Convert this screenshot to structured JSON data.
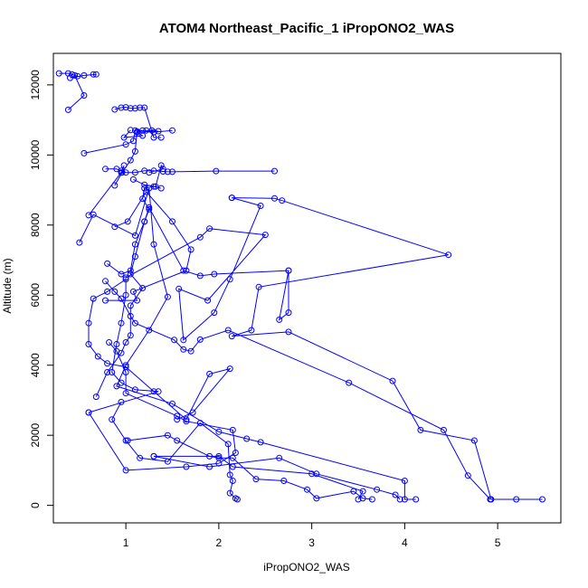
{
  "chart_data": {
    "type": "line",
    "title": "ATOM4 Northeast_Pacific_1 iPropONO2_WAS",
    "xlabel": "iPropONO2_WAS",
    "ylabel": "Altitude (m)",
    "xlim": [
      0.22,
      5.68
    ],
    "ylim": [
      -500,
      12900
    ],
    "x_ticks": [
      "1",
      "2",
      "3",
      "4",
      "5"
    ],
    "y_ticks": [
      "0",
      "2000",
      "4000",
      "6000",
      "8000",
      "10000",
      "12000"
    ],
    "grid": false,
    "legend": "none",
    "marker": "open-circle",
    "colors": {
      "series": "#0000ff",
      "axes": "#000000",
      "background": "#ffffff"
    },
    "series": [
      {
        "points": [
          [
            0.28,
            12330
          ],
          [
            0.38,
            12330
          ],
          [
            0.42,
            12300
          ],
          [
            0.48,
            12250
          ],
          [
            0.4,
            12200
          ],
          [
            0.55,
            12270
          ],
          [
            0.68,
            12300
          ],
          [
            0.65,
            12300
          ]
        ]
      },
      {
        "points": [
          [
            0.38,
            11290
          ],
          [
            0.55,
            11700
          ],
          [
            0.45,
            12270
          ]
        ]
      },
      {
        "points": [
          [
            1.22,
            10700
          ],
          [
            1.35,
            10680
          ],
          [
            1.12,
            10650
          ],
          [
            1.18,
            10550
          ],
          [
            0.98,
            10500
          ],
          [
            1.05,
            10710
          ]
        ]
      },
      {
        "points": [
          [
            0.88,
            11300
          ],
          [
            0.95,
            11350
          ],
          [
            1.0,
            11360
          ],
          [
            1.05,
            11330
          ],
          [
            1.1,
            11330
          ],
          [
            1.15,
            11350
          ],
          [
            1.2,
            11350
          ],
          [
            1.3,
            10500
          ],
          [
            1.38,
            10500
          ]
        ]
      },
      {
        "points": [
          [
            0.55,
            10050
          ],
          [
            1.0,
            10300
          ],
          [
            1.08,
            10400
          ],
          [
            1.1,
            10700
          ],
          [
            1.28,
            10700
          ],
          [
            1.3,
            10650
          ],
          [
            1.5,
            10700
          ]
        ]
      },
      {
        "points": [
          [
            0.78,
            9600
          ],
          [
            0.9,
            9600
          ],
          [
            0.95,
            9550
          ],
          [
            1.0,
            9500
          ],
          [
            1.1,
            9500
          ],
          [
            1.2,
            9550
          ],
          [
            1.3,
            9550
          ],
          [
            1.4,
            9530
          ],
          [
            1.45,
            9520
          ],
          [
            1.5,
            9520
          ],
          [
            1.97,
            9540
          ],
          [
            2.6,
            9540
          ]
        ]
      },
      {
        "points": [
          [
            0.88,
            9130
          ],
          [
            0.96,
            9500
          ],
          [
            1.05,
            9850
          ],
          [
            1.1,
            10100
          ],
          [
            1.12,
            10670
          ],
          [
            1.18,
            10700
          ]
        ]
      },
      {
        "points": [
          [
            1.08,
            9300
          ],
          [
            1.2,
            9150
          ],
          [
            1.32,
            9100
          ],
          [
            1.38,
            9700
          ],
          [
            1.4,
            9600
          ],
          [
            1.25,
            9500
          ]
        ]
      },
      {
        "points": [
          [
            0.6,
            8280
          ],
          [
            0.95,
            9500
          ],
          [
            0.98,
            9700
          ]
        ]
      },
      {
        "points": [
          [
            2.14,
            8780
          ],
          [
            2.6,
            8760
          ],
          [
            2.68,
            8700
          ],
          [
            4.47,
            7150
          ],
          [
            2.43,
            6230
          ],
          [
            2.35,
            5000
          ],
          [
            2.14,
            4830
          ],
          [
            2.75,
            4950
          ],
          [
            3.87,
            3550
          ],
          [
            4.17,
            2150
          ],
          [
            4.75,
            1850
          ],
          [
            4.93,
            170
          ],
          [
            5.2,
            170
          ],
          [
            5.48,
            170
          ]
        ]
      },
      {
        "points": [
          [
            2.14,
            8780
          ],
          [
            2.45,
            8550
          ],
          [
            2.12,
            6450
          ],
          [
            1.95,
            5500
          ],
          [
            1.62,
            4720
          ],
          [
            1.57,
            6180
          ],
          [
            1.88,
            5850
          ],
          [
            2.5,
            7720
          ],
          [
            1.9,
            7900
          ],
          [
            1.8,
            7650
          ],
          [
            1.0,
            6500
          ],
          [
            1.0,
            6000
          ],
          [
            0.95,
            5200
          ],
          [
            0.9,
            4600
          ],
          [
            0.85,
            3800
          ],
          [
            0.95,
            3500
          ],
          [
            1.1,
            3300
          ],
          [
            1.35,
            3250
          ],
          [
            0.6,
            2650
          ]
        ]
      },
      {
        "points": [
          [
            0.5,
            7500
          ],
          [
            0.65,
            8300
          ],
          [
            1.1,
            7700
          ],
          [
            1.25,
            9050
          ],
          [
            1.3,
            7450
          ],
          [
            1.45,
            5950
          ],
          [
            1.25,
            5000
          ],
          [
            1.0,
            4000
          ],
          [
            0.9,
            3400
          ],
          [
            1.5,
            2900
          ],
          [
            2.0,
            2100
          ],
          [
            2.3,
            1900
          ],
          [
            2.45,
            1800
          ],
          [
            4.0,
            700
          ],
          [
            4.0,
            170
          ],
          [
            4.12,
            170
          ]
        ]
      },
      {
        "points": [
          [
            0.8,
            6900
          ],
          [
            0.95,
            6600
          ],
          [
            1.05,
            6700
          ],
          [
            1.1,
            7450
          ],
          [
            1.2,
            8100
          ],
          [
            1.25,
            8500
          ],
          [
            1.62,
            6700
          ],
          [
            1.8,
            6550
          ],
          [
            1.95,
            6600
          ],
          [
            2.75,
            6700
          ],
          [
            2.65,
            5300
          ],
          [
            2.75,
            5500
          ],
          [
            2.75,
            6700
          ]
        ]
      },
      {
        "points": [
          [
            0.78,
            6400
          ],
          [
            0.88,
            6100
          ],
          [
            0.95,
            5900
          ],
          [
            1.05,
            5400
          ],
          [
            1.1,
            5200
          ],
          [
            1.52,
            4720
          ],
          [
            1.62,
            4450
          ],
          [
            1.7,
            4400
          ],
          [
            1.8,
            4730
          ],
          [
            2.1,
            5000
          ],
          [
            3.4,
            3500
          ],
          [
            4.42,
            2150
          ],
          [
            4.68,
            850
          ],
          [
            4.92,
            170
          ]
        ]
      },
      {
        "points": [
          [
            1.0,
            6450
          ],
          [
            0.8,
            6100
          ],
          [
            0.65,
            5900
          ],
          [
            0.6,
            5200
          ],
          [
            0.6,
            4600
          ],
          [
            0.7,
            4250
          ],
          [
            0.8,
            4050
          ],
          [
            1.0,
            3950
          ],
          [
            1.3,
            3250
          ],
          [
            1.65,
            2450
          ],
          [
            1.9,
            3750
          ],
          [
            2.12,
            3900
          ],
          [
            1.72,
            2650
          ],
          [
            1.55,
            2450
          ]
        ]
      },
      {
        "points": [
          [
            0.78,
            5850
          ],
          [
            1.12,
            5850
          ],
          [
            1.08,
            6100
          ],
          [
            1.65,
            6700
          ],
          [
            1.7,
            7300
          ],
          [
            1.5,
            8100
          ],
          [
            1.22,
            8950
          ],
          [
            1.02,
            8100
          ],
          [
            0.88,
            7950
          ]
        ]
      },
      {
        "points": [
          [
            0.82,
            4650
          ],
          [
            0.9,
            4400
          ],
          [
            1.0,
            3800
          ],
          [
            1.0,
            3200
          ],
          [
            1.55,
            2550
          ],
          [
            1.65,
            2400
          ],
          [
            2.15,
            2150
          ],
          [
            2.18,
            1500
          ],
          [
            2.0,
            1200
          ],
          [
            1.65,
            1100
          ],
          [
            1.0,
            1000
          ],
          [
            0.6,
            2650
          ]
        ]
      },
      {
        "points": [
          [
            0.68,
            3100
          ],
          [
            0.8,
            3800
          ],
          [
            0.95,
            4350
          ],
          [
            1.0,
            4650
          ],
          [
            1.05,
            4850
          ],
          [
            1.05,
            5700
          ],
          [
            1.18,
            6200
          ],
          [
            1.05,
            6600
          ],
          [
            1.1,
            7100
          ],
          [
            1.2,
            8100
          ],
          [
            1.25,
            8450
          ],
          [
            1.18,
            8750
          ],
          [
            1.2,
            9050
          ],
          [
            1.3,
            9100
          ],
          [
            1.38,
            9050
          ]
        ]
      },
      {
        "points": [
          [
            0.95,
            2950
          ],
          [
            0.85,
            2450
          ],
          [
            1.0,
            1850
          ],
          [
            1.15,
            1350
          ],
          [
            1.45,
            1250
          ],
          [
            1.8,
            2350
          ],
          [
            2.1,
            1750
          ],
          [
            2.12,
            870
          ],
          [
            2.15,
            700
          ],
          [
            2.12,
            350
          ],
          [
            2.18,
            200
          ],
          [
            2.2,
            170
          ]
        ]
      },
      {
        "points": [
          [
            1.02,
            1850
          ],
          [
            1.45,
            2000
          ],
          [
            1.55,
            1850
          ],
          [
            1.9,
            1400
          ],
          [
            2.0,
            1350
          ],
          [
            2.15,
            1350
          ],
          [
            2.4,
            750
          ],
          [
            2.7,
            700
          ],
          [
            2.95,
            450
          ],
          [
            3.05,
            200
          ],
          [
            3.45,
            400
          ],
          [
            3.55,
            200
          ],
          [
            3.65,
            170
          ]
        ]
      },
      {
        "points": [
          [
            1.3,
            1400
          ],
          [
            2.0,
            1400
          ],
          [
            2.15,
            1100
          ],
          [
            3.0,
            900
          ],
          [
            3.55,
            400
          ],
          [
            3.5,
            170
          ]
        ]
      },
      {
        "points": [
          [
            1.3,
            1400
          ],
          [
            1.9,
            1100
          ],
          [
            2.65,
            1350
          ],
          [
            3.05,
            900
          ],
          [
            3.7,
            450
          ],
          [
            3.9,
            300
          ],
          [
            3.95,
            170
          ]
        ]
      }
    ]
  }
}
